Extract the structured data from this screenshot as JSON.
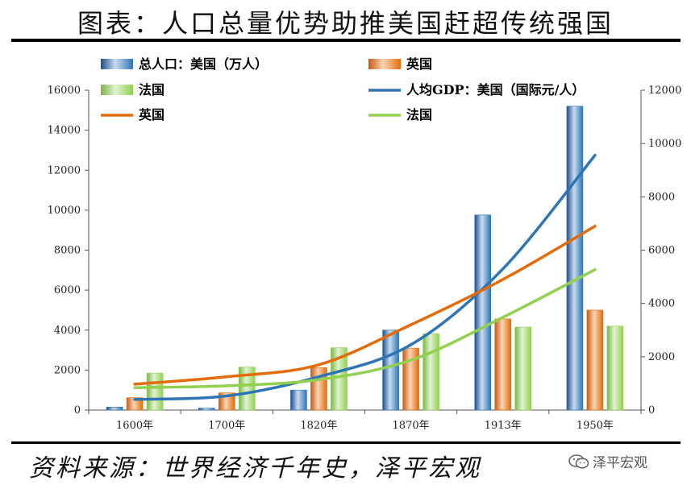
{
  "header": {
    "title": "图表：人口总量优势助推美国赶超传统强国"
  },
  "footer": {
    "source": "资料来源：世界经济千年史，泽平宏观",
    "brand": "泽平宏观"
  },
  "colors": {
    "us": "#2e75b6",
    "uk": "#e36c09",
    "fr": "#92d050"
  },
  "chart_data": {
    "type": "bar",
    "categories": [
      "1600年",
      "1700年",
      "1820年",
      "1870年",
      "1913年",
      "1950年"
    ],
    "left_axis": {
      "ticks": [
        "0",
        "2000",
        "4000",
        "6000",
        "8000",
        "10000",
        "12000",
        "14000",
        "16000"
      ],
      "ylim": [
        0,
        16000
      ]
    },
    "right_axis": {
      "ticks": [
        "0",
        "2000",
        "4000",
        "6000",
        "8000",
        "10000",
        "12000"
      ],
      "ylim": [
        0,
        12000
      ]
    },
    "series": [
      {
        "name": "总人口：美国（万人）",
        "kind": "bar",
        "axis": "left",
        "color": "#2e75b6",
        "values": [
          150,
          100,
          1000,
          4000,
          9760,
          15200
        ]
      },
      {
        "name": "英国",
        "kind": "bar",
        "axis": "left",
        "color": "#e36c09",
        "values": [
          620,
          860,
          2120,
          3100,
          4560,
          5000
        ]
      },
      {
        "name": "法国",
        "kind": "bar",
        "axis": "left",
        "color": "#92d050",
        "values": [
          1850,
          2150,
          3120,
          3820,
          4150,
          4200
        ]
      },
      {
        "name": "人均GDP：美国（国际元/人）",
        "kind": "line",
        "axis": "right",
        "color": "#2e75b6",
        "values": [
          400,
          530,
          1250,
          2450,
          5300,
          9560
        ]
      },
      {
        "name": "英国",
        "kind": "line",
        "axis": "right",
        "color": "#e36c09",
        "values": [
          970,
          1250,
          1700,
          3200,
          4900,
          6900
        ]
      },
      {
        "name": "法国",
        "kind": "line",
        "axis": "right",
        "color": "#92d050",
        "values": [
          840,
          910,
          1140,
          1870,
          3480,
          5270
        ]
      }
    ],
    "legend": {
      "placement": "top"
    },
    "grid": false
  }
}
